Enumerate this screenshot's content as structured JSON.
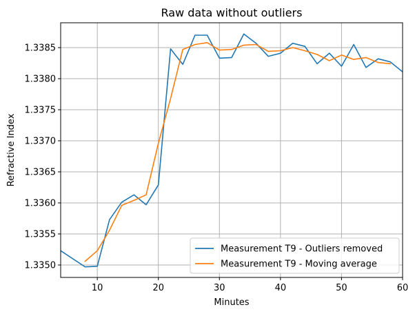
{
  "chart_data": {
    "type": "line",
    "title": "Raw data without outliers",
    "xlabel": "Minutes",
    "ylabel": "Refractive Index",
    "xlim": [
      4,
      60
    ],
    "ylim": [
      1.3348,
      1.3389
    ],
    "xticks": [
      10,
      20,
      30,
      40,
      50,
      60
    ],
    "yticks": [
      1.335,
      1.3355,
      1.336,
      1.3365,
      1.337,
      1.3375,
      1.338,
      1.3385
    ],
    "ytick_labels": [
      "1.3350",
      "1.3355",
      "1.3360",
      "1.3365",
      "1.3370",
      "1.3375",
      "1.3380",
      "1.3385"
    ],
    "grid": true,
    "legend_position": "lower-right",
    "series": [
      {
        "name": "Measurement T9 - Outliers removed",
        "color": "#1f77b4",
        "x": [
          4,
          8,
          10,
          12,
          14,
          16,
          18,
          20,
          22,
          24,
          26,
          28,
          30,
          32,
          34,
          36,
          38,
          40,
          42,
          44,
          46,
          48,
          50,
          52,
          54,
          56,
          58,
          60
        ],
        "y": [
          1.33523,
          1.33497,
          1.33498,
          1.33573,
          1.33601,
          1.33613,
          1.33597,
          1.33629,
          1.33848,
          1.33823,
          1.3387,
          1.3387,
          1.33833,
          1.33834,
          1.33872,
          1.33857,
          1.33836,
          1.33841,
          1.33857,
          1.33852,
          1.33824,
          1.33841,
          1.3382,
          1.33855,
          1.33818,
          1.33832,
          1.33827,
          1.33811
        ]
      },
      {
        "name": "Measurement T9 - Moving average",
        "color": "#ff7f0e",
        "x": [
          8,
          10,
          12,
          14,
          16,
          18,
          20,
          22,
          24,
          26,
          28,
          30,
          32,
          34,
          36,
          38,
          40,
          42,
          44,
          46,
          48,
          50,
          52,
          54,
          56,
          58
        ],
        "y": [
          1.33506,
          1.33523,
          1.33556,
          1.33596,
          1.33604,
          1.33613,
          1.33696,
          1.33768,
          1.33847,
          1.33855,
          1.33858,
          1.33846,
          1.33847,
          1.33854,
          1.33855,
          1.33844,
          1.33845,
          1.3385,
          1.33845,
          1.33839,
          1.33829,
          1.33838,
          1.33831,
          1.33834,
          1.33826,
          1.33824
        ]
      }
    ]
  }
}
